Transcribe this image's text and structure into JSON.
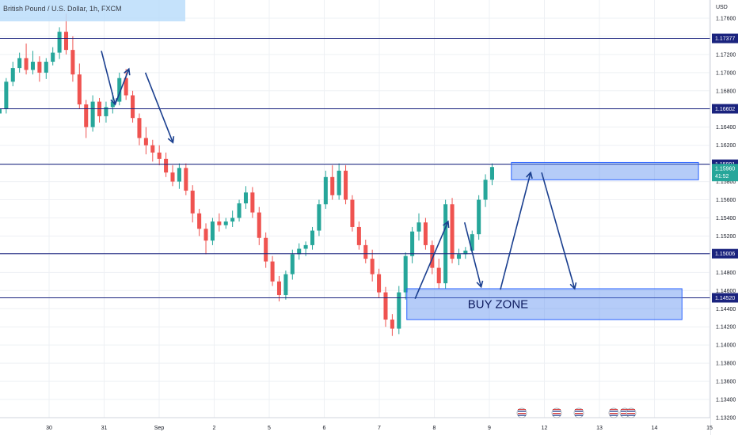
{
  "header": {
    "title": "British Pound / U.S. Dollar, 1h, FXCM",
    "currency": "USD"
  },
  "chart_data": {
    "type": "candlestick",
    "symbol": "GBPUSD",
    "timeframe": "1h",
    "currency": "USD",
    "ylim": [
      1.132,
      1.178
    ],
    "y_ticks": [
      "1.13200",
      "1.13400",
      "1.13600",
      "1.13800",
      "1.14000",
      "1.14200",
      "1.14400",
      "1.14600",
      "1.14800",
      "1.15000",
      "1.15200",
      "1.15400",
      "1.15600",
      "1.15800",
      "1.16000",
      "1.16200",
      "1.16400",
      "1.16600",
      "1.16800",
      "1.17000",
      "1.17200",
      "1.17400",
      "1.17600"
    ],
    "x_ticks": [
      {
        "label": "30",
        "pos": 0.5
      },
      {
        "label": "31",
        "pos": 1.5
      },
      {
        "label": "Sep",
        "pos": 2.5
      },
      {
        "label": "2",
        "pos": 3.5
      },
      {
        "label": "5",
        "pos": 4.5
      },
      {
        "label": "6",
        "pos": 5.5
      },
      {
        "label": "7",
        "pos": 6.5
      },
      {
        "label": "8",
        "pos": 7.5
      },
      {
        "label": "9",
        "pos": 8.5
      },
      {
        "label": "12",
        "pos": 9.5
      },
      {
        "label": "13",
        "pos": 10.5
      },
      {
        "label": "14",
        "pos": 11.5
      },
      {
        "label": "15",
        "pos": 12.5
      }
    ],
    "horizontal_levels": [
      {
        "value": 1.17377,
        "label": "1.17377"
      },
      {
        "value": 1.16602,
        "label": "1.16602"
      },
      {
        "value": 1.15991,
        "label": "1.15991"
      },
      {
        "value": 1.15006,
        "label": "1.15006"
      },
      {
        "value": 1.1452,
        "label": "1.14520"
      }
    ],
    "current_price": {
      "value": 1.1596,
      "label": "1.15960",
      "countdown": "41:52"
    },
    "zones": [
      {
        "name": "sell-zone",
        "x_start": 8.4,
        "x_end": 11.8,
        "y_top": 1.1601,
        "y_bottom": 1.1582,
        "label": ""
      },
      {
        "name": "buy-zone",
        "x_start": 6.5,
        "x_end": 11.5,
        "y_top": 1.1462,
        "y_bottom": 1.1428,
        "label": "BUY ZONE"
      }
    ],
    "arrows": [
      {
        "from": [
          0.95,
          1.1724
        ],
        "to": [
          1.2,
          1.1665
        ]
      },
      {
        "from": [
          1.2,
          1.1665
        ],
        "to": [
          1.45,
          1.1704
        ]
      },
      {
        "from": [
          1.75,
          1.17
        ],
        "to": [
          2.25,
          1.1623
        ]
      },
      {
        "from": [
          6.65,
          1.1451
        ],
        "to": [
          7.25,
          1.1536
        ]
      },
      {
        "from": [
          7.55,
          1.1535
        ],
        "to": [
          7.85,
          1.1464
        ]
      },
      {
        "from": [
          8.2,
          1.1461
        ],
        "to": [
          8.75,
          1.159
        ]
      },
      {
        "from": [
          8.95,
          1.159
        ],
        "to": [
          9.55,
          1.1462
        ]
      }
    ],
    "candles": [
      [
        1.1655,
        1.1672,
        1.165,
        1.166
      ],
      [
        1.166,
        1.1694,
        1.1655,
        1.169
      ],
      [
        1.169,
        1.1712,
        1.1685,
        1.1705
      ],
      [
        1.1705,
        1.1722,
        1.17,
        1.1716
      ],
      [
        1.1716,
        1.1732,
        1.1698,
        1.1703
      ],
      [
        1.1703,
        1.1724,
        1.1698,
        1.1712
      ],
      [
        1.1712,
        1.1718,
        1.169,
        1.17
      ],
      [
        1.17,
        1.1716,
        1.1693,
        1.1712
      ],
      [
        1.1712,
        1.1728,
        1.1708,
        1.1722
      ],
      [
        1.1722,
        1.175,
        1.1715,
        1.1745
      ],
      [
        1.1745,
        1.1765,
        1.172,
        1.1725
      ],
      [
        1.1725,
        1.174,
        1.169,
        1.1698
      ],
      [
        1.1698,
        1.171,
        1.166,
        1.1665
      ],
      [
        1.1665,
        1.167,
        1.1628,
        1.164
      ],
      [
        1.164,
        1.1675,
        1.1635,
        1.1668
      ],
      [
        1.1668,
        1.1672,
        1.1645,
        1.1652
      ],
      [
        1.1652,
        1.1668,
        1.1645,
        1.1662
      ],
      [
        1.1662,
        1.1678,
        1.1655,
        1.1668
      ],
      [
        1.1668,
        1.17,
        1.1664,
        1.1694
      ],
      [
        1.1694,
        1.1704,
        1.167,
        1.1675
      ],
      [
        1.1675,
        1.168,
        1.1645,
        1.165
      ],
      [
        1.165,
        1.1655,
        1.162,
        1.1628
      ],
      [
        1.1628,
        1.164,
        1.161,
        1.162
      ],
      [
        1.162,
        1.1626,
        1.1602,
        1.1612
      ],
      [
        1.1612,
        1.162,
        1.1598,
        1.1605
      ],
      [
        1.1605,
        1.1612,
        1.1585,
        1.159
      ],
      [
        1.159,
        1.1598,
        1.1575,
        1.158
      ],
      [
        1.158,
        1.16,
        1.1572,
        1.1595
      ],
      [
        1.1595,
        1.16,
        1.1565,
        1.157
      ],
      [
        1.157,
        1.1576,
        1.1535,
        1.1545
      ],
      [
        1.1545,
        1.155,
        1.152,
        1.1528
      ],
      [
        1.1528,
        1.1534,
        1.15,
        1.1515
      ],
      [
        1.1515,
        1.154,
        1.151,
        1.1536
      ],
      [
        1.1536,
        1.1545,
        1.1525,
        1.1532
      ],
      [
        1.1532,
        1.154,
        1.1528,
        1.1536
      ],
      [
        1.1536,
        1.1548,
        1.153,
        1.154
      ],
      [
        1.154,
        1.156,
        1.1536,
        1.1556
      ],
      [
        1.1556,
        1.1575,
        1.155,
        1.1568
      ],
      [
        1.1568,
        1.1574,
        1.154,
        1.1546
      ],
      [
        1.1546,
        1.1552,
        1.151,
        1.1518
      ],
      [
        1.1518,
        1.1524,
        1.1485,
        1.1492
      ],
      [
        1.1492,
        1.1498,
        1.1465,
        1.147
      ],
      [
        1.147,
        1.1476,
        1.1448,
        1.1455
      ],
      [
        1.1455,
        1.1482,
        1.145,
        1.1478
      ],
      [
        1.1478,
        1.1505,
        1.1472,
        1.15
      ],
      [
        1.15,
        1.1512,
        1.1494,
        1.1506
      ],
      [
        1.1506,
        1.1514,
        1.1498,
        1.151
      ],
      [
        1.151,
        1.153,
        1.1505,
        1.1526
      ],
      [
        1.1526,
        1.156,
        1.152,
        1.1555
      ],
      [
        1.1555,
        1.1592,
        1.155,
        1.1585
      ],
      [
        1.1585,
        1.1598,
        1.156,
        1.1565
      ],
      [
        1.1565,
        1.16,
        1.156,
        1.1592
      ],
      [
        1.1592,
        1.1598,
        1.1555,
        1.156
      ],
      [
        1.156,
        1.1565,
        1.1525,
        1.153
      ],
      [
        1.153,
        1.1536,
        1.1505,
        1.151
      ],
      [
        1.151,
        1.1516,
        1.149,
        1.1495
      ],
      [
        1.1495,
        1.1505,
        1.147,
        1.1478
      ],
      [
        1.1478,
        1.1484,
        1.1452,
        1.1458
      ],
      [
        1.1458,
        1.1464,
        1.142,
        1.1428
      ],
      [
        1.1428,
        1.1434,
        1.141,
        1.1418
      ],
      [
        1.1418,
        1.1465,
        1.1412,
        1.1458
      ],
      [
        1.1458,
        1.1502,
        1.145,
        1.1498
      ],
      [
        1.1498,
        1.153,
        1.149,
        1.1525
      ],
      [
        1.1525,
        1.1545,
        1.1515,
        1.1535
      ],
      [
        1.1535,
        1.154,
        1.1505,
        1.151
      ],
      [
        1.151,
        1.1515,
        1.1478,
        1.1485
      ],
      [
        1.1485,
        1.1495,
        1.1462,
        1.1468
      ],
      [
        1.1468,
        1.156,
        1.1462,
        1.1555
      ],
      [
        1.1555,
        1.1562,
        1.149,
        1.1495
      ],
      [
        1.1495,
        1.1506,
        1.1488,
        1.15
      ],
      [
        1.15,
        1.1508,
        1.1495,
        1.1504
      ],
      [
        1.1504,
        1.1526,
        1.15,
        1.1522
      ],
      [
        1.1522,
        1.1565,
        1.1516,
        1.156
      ],
      [
        1.156,
        1.1588,
        1.1552,
        1.1582
      ],
      [
        1.1582,
        1.16,
        1.1576,
        1.1596
      ]
    ]
  },
  "colors": {
    "up": "#26a69a",
    "down": "#ef5350",
    "level_line": "#1a237e",
    "level_tag": "#1a237e",
    "price_tag": "#26a69a",
    "arrow": "#1a3f8f",
    "zone_fill": "#5b8def",
    "zone_stroke": "#2962ff",
    "grid": "#eef0f4",
    "title_bg": "#bbdefb"
  },
  "event_icons": [
    "flag-us-icon",
    "flag-eu-icon",
    "flag-us-icon",
    "flag-eu-icon",
    "flag-us-icon",
    "flag-eu-icon"
  ]
}
